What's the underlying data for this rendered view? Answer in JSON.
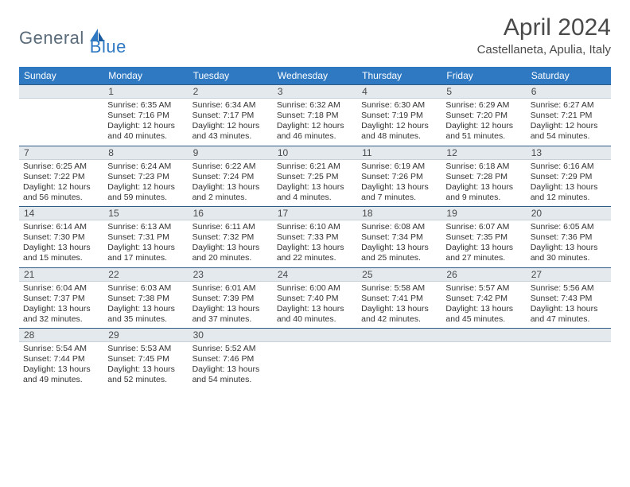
{
  "logo": {
    "part1": "General",
    "part2": "Blue"
  },
  "title": "April 2024",
  "location": "Castellaneta, Apulia, Italy",
  "dayNames": [
    "Sunday",
    "Monday",
    "Tuesday",
    "Wednesday",
    "Thursday",
    "Friday",
    "Saturday"
  ],
  "colors": {
    "headerBlue": "#2f79c2",
    "numberRowBg": "#e4e9ee",
    "numberRowBorder": "#2f5b84",
    "text": "#333333",
    "titleText": "#4a4a4a"
  },
  "weeks": [
    [
      {
        "n": "",
        "sunrise": "",
        "sunset": "",
        "daylight": ""
      },
      {
        "n": "1",
        "sunrise": "6:35 AM",
        "sunset": "7:16 PM",
        "daylight": "12 hours and 40 minutes."
      },
      {
        "n": "2",
        "sunrise": "6:34 AM",
        "sunset": "7:17 PM",
        "daylight": "12 hours and 43 minutes."
      },
      {
        "n": "3",
        "sunrise": "6:32 AM",
        "sunset": "7:18 PM",
        "daylight": "12 hours and 46 minutes."
      },
      {
        "n": "4",
        "sunrise": "6:30 AM",
        "sunset": "7:19 PM",
        "daylight": "12 hours and 48 minutes."
      },
      {
        "n": "5",
        "sunrise": "6:29 AM",
        "sunset": "7:20 PM",
        "daylight": "12 hours and 51 minutes."
      },
      {
        "n": "6",
        "sunrise": "6:27 AM",
        "sunset": "7:21 PM",
        "daylight": "12 hours and 54 minutes."
      }
    ],
    [
      {
        "n": "7",
        "sunrise": "6:25 AM",
        "sunset": "7:22 PM",
        "daylight": "12 hours and 56 minutes."
      },
      {
        "n": "8",
        "sunrise": "6:24 AM",
        "sunset": "7:23 PM",
        "daylight": "12 hours and 59 minutes."
      },
      {
        "n": "9",
        "sunrise": "6:22 AM",
        "sunset": "7:24 PM",
        "daylight": "13 hours and 2 minutes."
      },
      {
        "n": "10",
        "sunrise": "6:21 AM",
        "sunset": "7:25 PM",
        "daylight": "13 hours and 4 minutes."
      },
      {
        "n": "11",
        "sunrise": "6:19 AM",
        "sunset": "7:26 PM",
        "daylight": "13 hours and 7 minutes."
      },
      {
        "n": "12",
        "sunrise": "6:18 AM",
        "sunset": "7:28 PM",
        "daylight": "13 hours and 9 minutes."
      },
      {
        "n": "13",
        "sunrise": "6:16 AM",
        "sunset": "7:29 PM",
        "daylight": "13 hours and 12 minutes."
      }
    ],
    [
      {
        "n": "14",
        "sunrise": "6:14 AM",
        "sunset": "7:30 PM",
        "daylight": "13 hours and 15 minutes."
      },
      {
        "n": "15",
        "sunrise": "6:13 AM",
        "sunset": "7:31 PM",
        "daylight": "13 hours and 17 minutes."
      },
      {
        "n": "16",
        "sunrise": "6:11 AM",
        "sunset": "7:32 PM",
        "daylight": "13 hours and 20 minutes."
      },
      {
        "n": "17",
        "sunrise": "6:10 AM",
        "sunset": "7:33 PM",
        "daylight": "13 hours and 22 minutes."
      },
      {
        "n": "18",
        "sunrise": "6:08 AM",
        "sunset": "7:34 PM",
        "daylight": "13 hours and 25 minutes."
      },
      {
        "n": "19",
        "sunrise": "6:07 AM",
        "sunset": "7:35 PM",
        "daylight": "13 hours and 27 minutes."
      },
      {
        "n": "20",
        "sunrise": "6:05 AM",
        "sunset": "7:36 PM",
        "daylight": "13 hours and 30 minutes."
      }
    ],
    [
      {
        "n": "21",
        "sunrise": "6:04 AM",
        "sunset": "7:37 PM",
        "daylight": "13 hours and 32 minutes."
      },
      {
        "n": "22",
        "sunrise": "6:03 AM",
        "sunset": "7:38 PM",
        "daylight": "13 hours and 35 minutes."
      },
      {
        "n": "23",
        "sunrise": "6:01 AM",
        "sunset": "7:39 PM",
        "daylight": "13 hours and 37 minutes."
      },
      {
        "n": "24",
        "sunrise": "6:00 AM",
        "sunset": "7:40 PM",
        "daylight": "13 hours and 40 minutes."
      },
      {
        "n": "25",
        "sunrise": "5:58 AM",
        "sunset": "7:41 PM",
        "daylight": "13 hours and 42 minutes."
      },
      {
        "n": "26",
        "sunrise": "5:57 AM",
        "sunset": "7:42 PM",
        "daylight": "13 hours and 45 minutes."
      },
      {
        "n": "27",
        "sunrise": "5:56 AM",
        "sunset": "7:43 PM",
        "daylight": "13 hours and 47 minutes."
      }
    ],
    [
      {
        "n": "28",
        "sunrise": "5:54 AM",
        "sunset": "7:44 PM",
        "daylight": "13 hours and 49 minutes."
      },
      {
        "n": "29",
        "sunrise": "5:53 AM",
        "sunset": "7:45 PM",
        "daylight": "13 hours and 52 minutes."
      },
      {
        "n": "30",
        "sunrise": "5:52 AM",
        "sunset": "7:46 PM",
        "daylight": "13 hours and 54 minutes."
      },
      {
        "n": "",
        "sunrise": "",
        "sunset": "",
        "daylight": ""
      },
      {
        "n": "",
        "sunrise": "",
        "sunset": "",
        "daylight": ""
      },
      {
        "n": "",
        "sunrise": "",
        "sunset": "",
        "daylight": ""
      },
      {
        "n": "",
        "sunrise": "",
        "sunset": "",
        "daylight": ""
      }
    ]
  ],
  "labels": {
    "sunrise": "Sunrise:",
    "sunset": "Sunset:",
    "daylight": "Daylight:"
  }
}
